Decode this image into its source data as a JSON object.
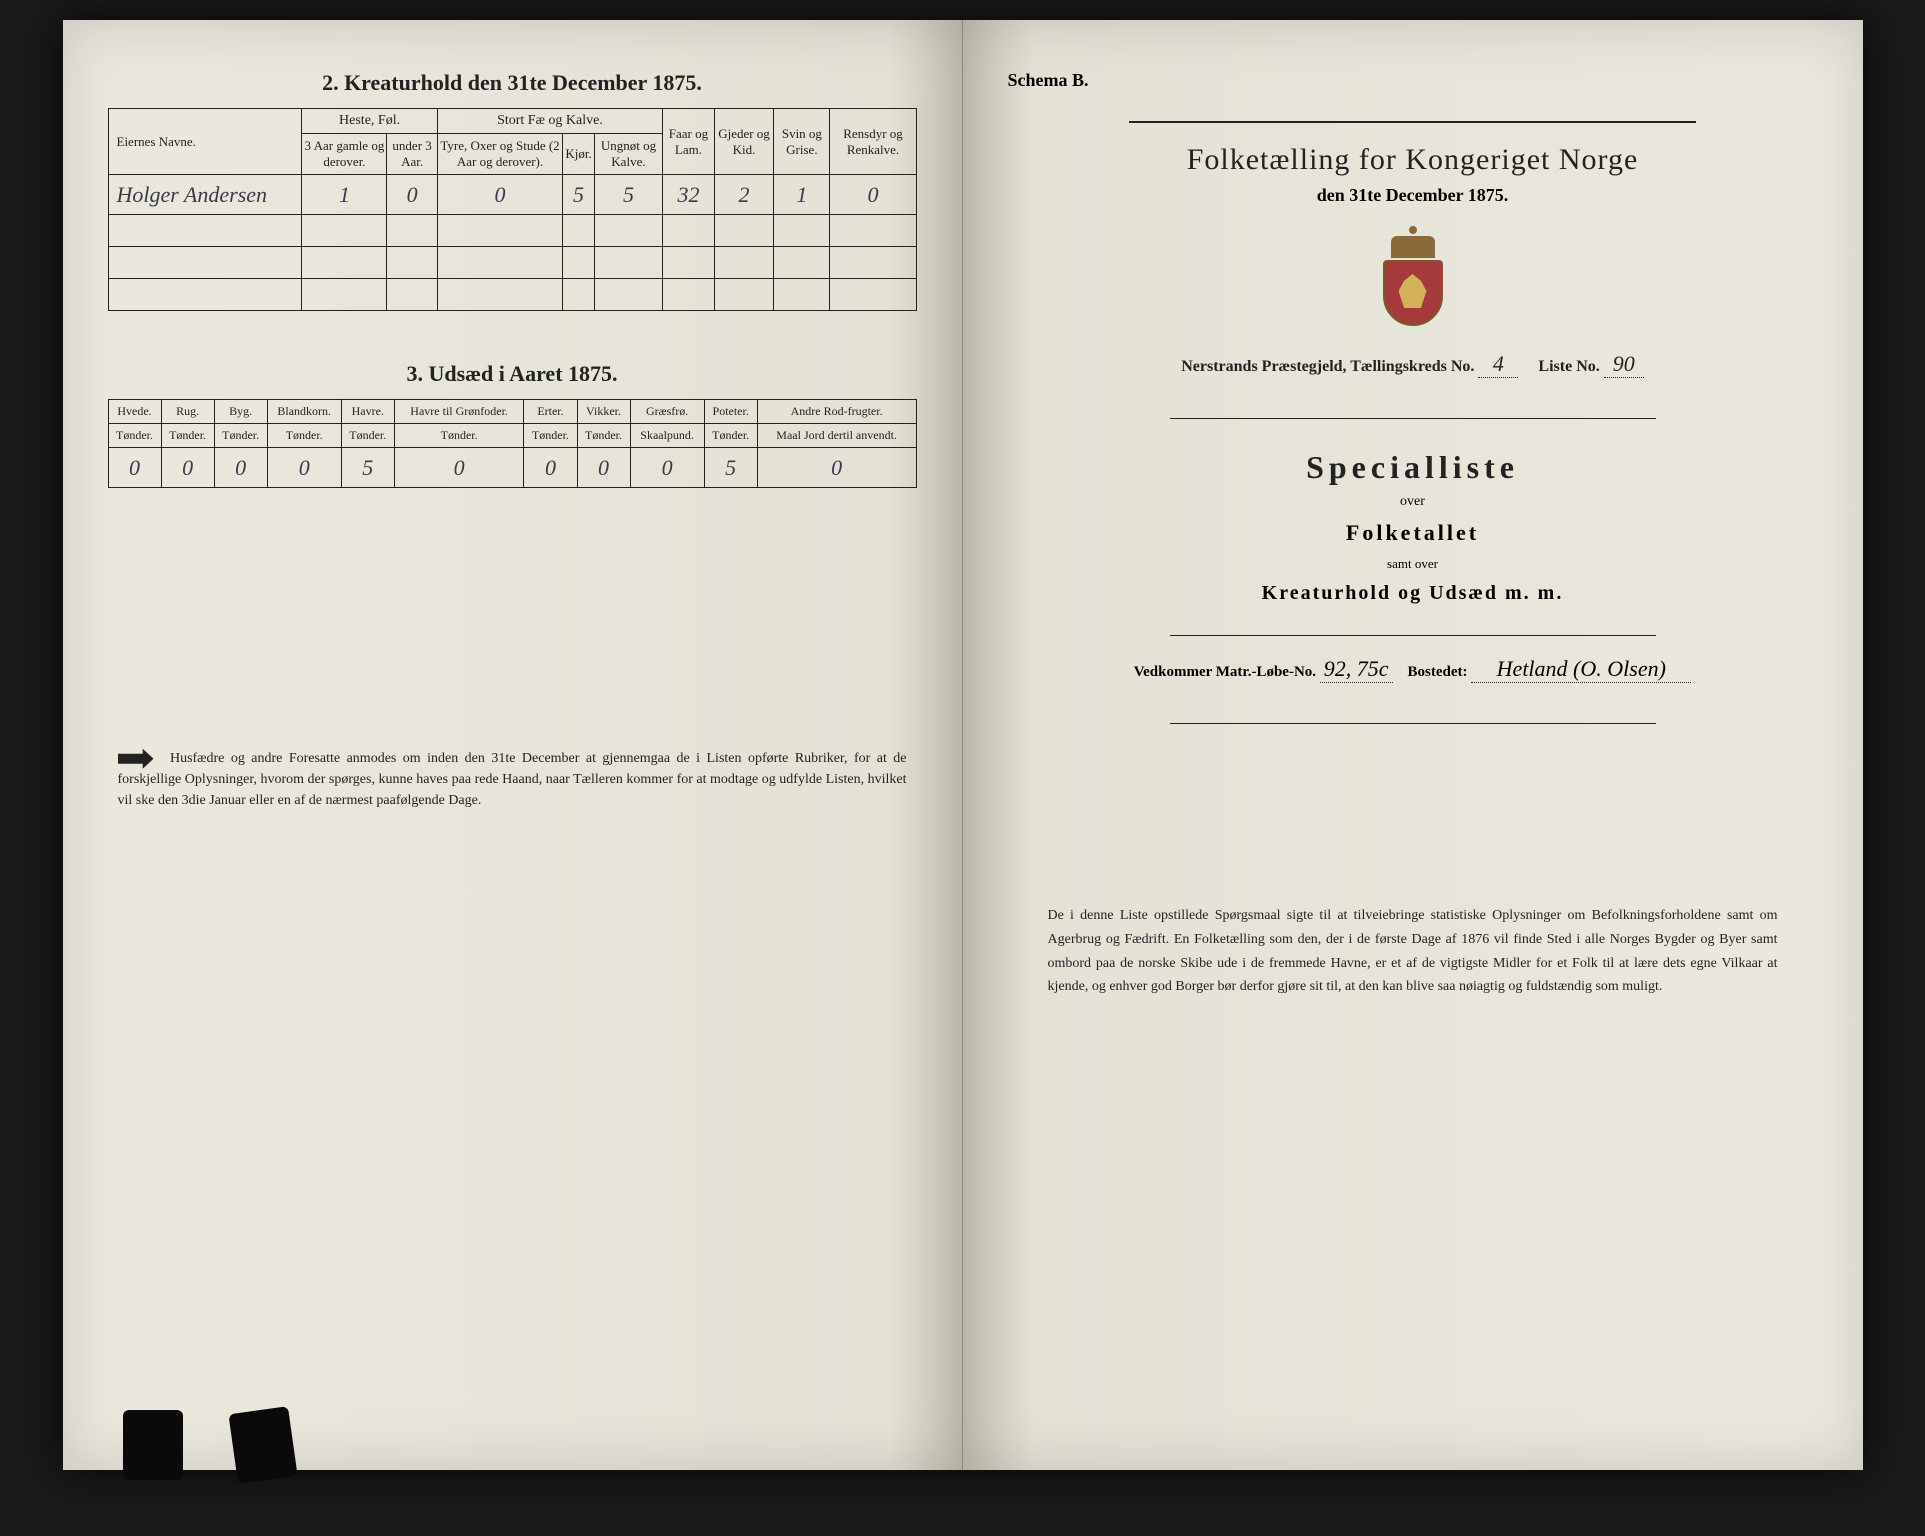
{
  "left": {
    "section2_title": "2.  Kreaturhold den 31te December 1875.",
    "table2": {
      "col_owner": "Eiernes Navne.",
      "grp_heste": "Heste, Føl.",
      "grp_stort": "Stort Fæ og Kalve.",
      "col_faar": "Faar og Lam.",
      "col_gjed": "Gjeder og Kid.",
      "col_svin": "Svin og Grise.",
      "col_rens": "Rensdyr og Renkalve.",
      "h1": "3 Aar gamle og derover.",
      "h2": "under 3 Aar.",
      "s1": "Tyre, Oxer og Stude (2 Aar og derover).",
      "s2": "Kjør.",
      "s3": "Ungnøt og Kalve.",
      "rows": [
        {
          "owner": "Holger Andersen",
          "v": [
            "1",
            "0",
            "0",
            "5",
            "5",
            "32",
            "2",
            "1",
            "0"
          ]
        }
      ]
    },
    "section3_title": "3.  Udsæd i Aaret 1875.",
    "table3": {
      "cols": [
        "Hvede.",
        "Rug.",
        "Byg.",
        "Blandkorn.",
        "Havre.",
        "Havre til Grønfoder.",
        "Erter.",
        "Vikker.",
        "Græsfrø.",
        "Poteter.",
        "Andre Rod-frugter."
      ],
      "units": [
        "Tønder.",
        "Tønder.",
        "Tønder.",
        "Tønder.",
        "Tønder.",
        "Tønder.",
        "Tønder.",
        "Tønder.",
        "Skaalpund.",
        "Tønder.",
        "Maal Jord dertil anvendt."
      ],
      "vals": [
        "0",
        "0",
        "0",
        "0",
        "5",
        "0",
        "0",
        "0",
        "0",
        "5",
        "0"
      ]
    },
    "footnote": "Husfædre og andre Foresatte anmodes om inden den 31te December at gjennemgaa de i Listen opførte Rubriker, for at de forskjellige Oplysninger, hvorom der spørges, kunne haves paa rede Haand, naar Tælleren kommer for at modtage og udfylde Listen, hvilket vil ske den 3die Januar eller en af de nærmest paafølgende Dage."
  },
  "right": {
    "schema": "Schema B.",
    "title": "Folketælling for Kongeriget Norge",
    "subtitle": "den 31te December 1875.",
    "parish_label": "Nerstrands Præstegjeld,  Tællingskreds No.",
    "kreds_no": "4",
    "liste_label": "Liste No.",
    "liste_no": "90",
    "special": "Specialliste",
    "over": "over",
    "folke": "Folketallet",
    "samt": "samt over",
    "kreatur": "Kreaturhold og Udsæd m. m.",
    "vedk_label": "Vedkommer Matr.-Løbe-No.",
    "matr_no": "92, 75c",
    "bost_label": "Bostedet:",
    "bosted": "Hetland (O. Olsen)",
    "footer": "De i denne Liste opstillede Spørgsmaal sigte til at tilveiebringe statistiske Oplysninger om Befolkningsforholdene samt om Agerbrug og Fædrift. En Folketælling som den, der i de første Dage af 1876 vil finde Sted i alle Norges Bygder og Byer samt ombord paa de norske Skibe ude i de fremmede Havne, er et af de vigtigste Midler for et Folk til at lære dets egne Vilkaar at kjende, og enhver god Borger bør derfor gjøre sit til, at den kan blive saa nøiagtig og fuldstændig som muligt."
  }
}
